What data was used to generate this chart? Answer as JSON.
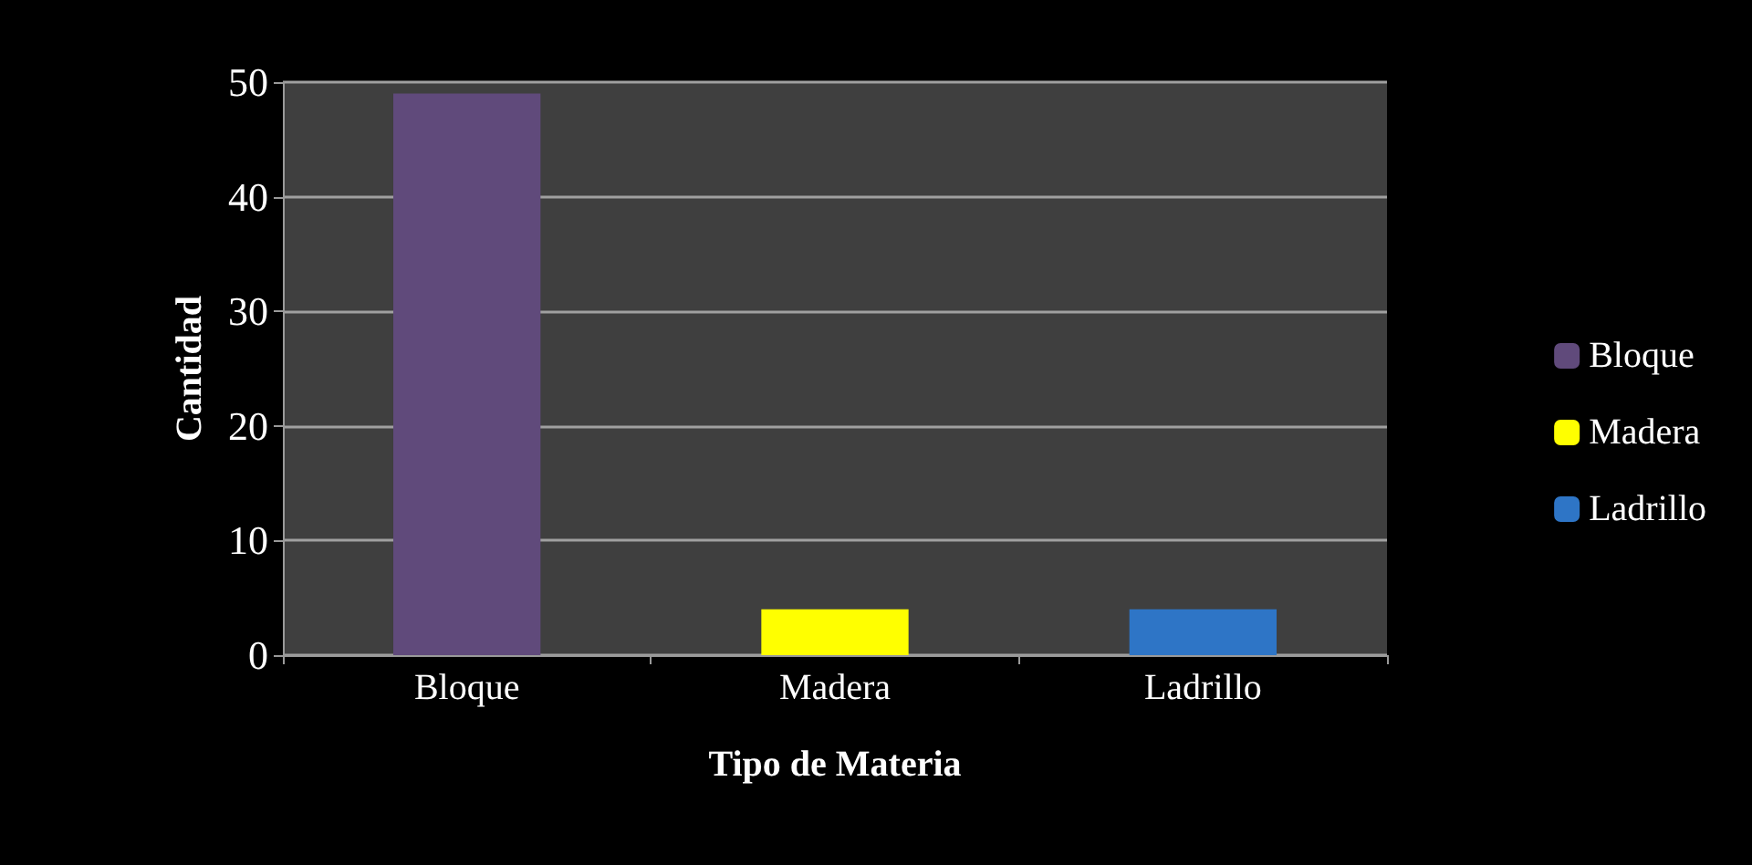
{
  "chart_data": {
    "type": "bar",
    "xlabel": "Tipo de Materia",
    "ylabel": "Cantidad",
    "categories": [
      "Bloque",
      "Madera",
      "Ladrillo"
    ],
    "series": [
      {
        "name": "Bloque",
        "color": "#604a7b",
        "values": [
          49,
          null,
          null
        ]
      },
      {
        "name": "Madera",
        "color": "#ffff00",
        "values": [
          null,
          4,
          null
        ]
      },
      {
        "name": "Ladrillo",
        "color": "#2e75c6",
        "values": [
          null,
          null,
          4
        ]
      }
    ],
    "ylim": [
      0,
      50
    ],
    "yticks": [
      0,
      10,
      20,
      30,
      40,
      50
    ],
    "grid": "y",
    "legend": "right"
  }
}
